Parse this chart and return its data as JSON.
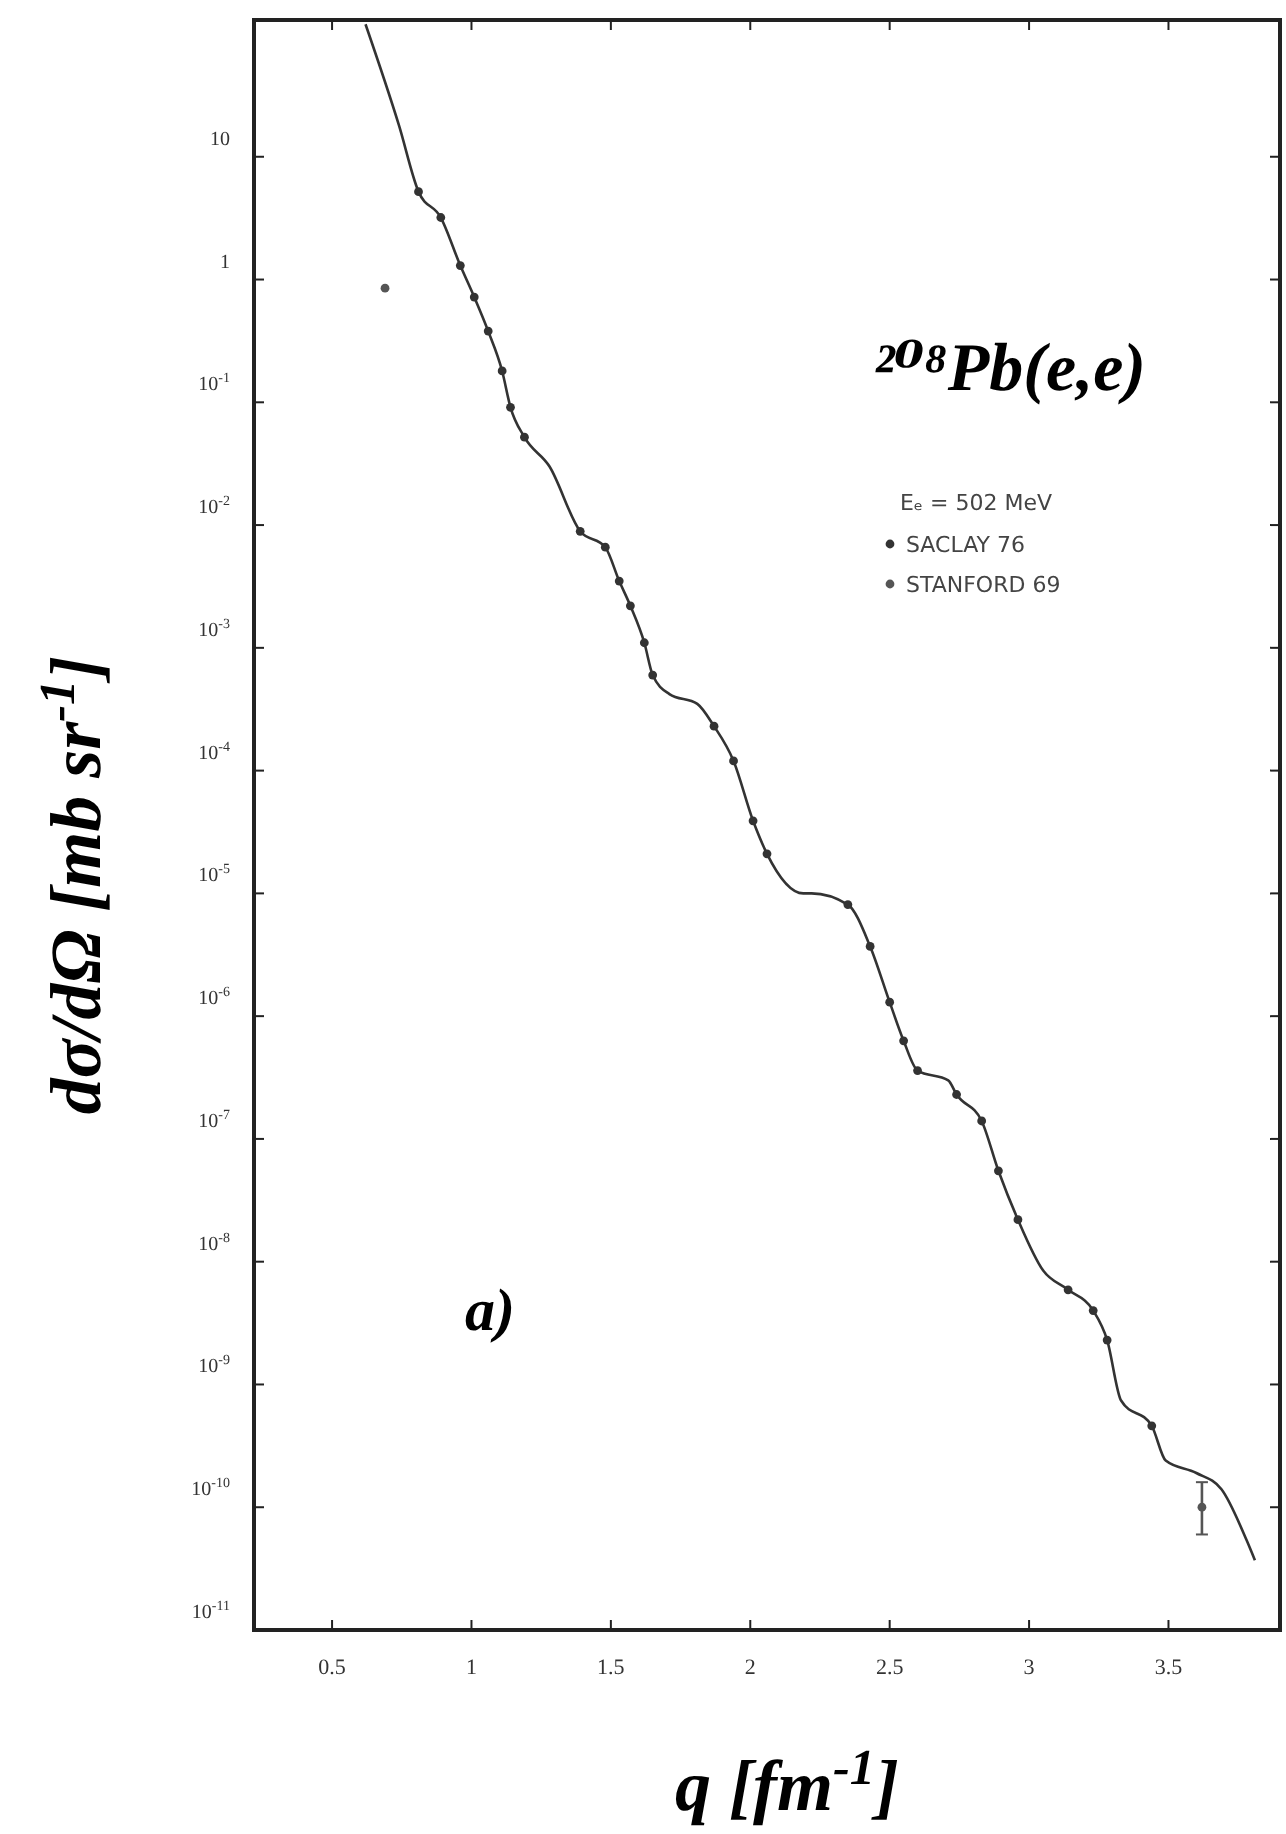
{
  "chart_data": {
    "type": "line",
    "title": "²⁰⁸Pb(e,e)",
    "subtitle": "Eₑ = 502 MeV",
    "xlabel": "q [fm$^{-1}$]",
    "ylabel": "dσ/dΩ [mb sr$^{-1}$]",
    "annotations": [
      "a)"
    ],
    "xlim": [
      0.22,
      3.9
    ],
    "xticks": [
      0.5,
      1,
      1.5,
      2,
      2.5,
      3,
      3.5
    ],
    "ylim": [
      1e-11,
      130
    ],
    "log": "y",
    "yticks": [
      {
        "value": 10,
        "label": "10"
      },
      {
        "value": 1,
        "label": "1"
      },
      {
        "value": 0.1,
        "label": "10$^{-1}$"
      },
      {
        "value": 0.01,
        "label": "10$^{-2}$"
      },
      {
        "value": 0.001,
        "label": "10$^{-3}$"
      },
      {
        "value": 0.0001,
        "label": "10$^{-4}$"
      },
      {
        "value": 1e-05,
        "label": "10$^{-5}$"
      },
      {
        "value": 1e-06,
        "label": "10$^{-6}$"
      },
      {
        "value": 1e-07,
        "label": "10$^{-7}$"
      },
      {
        "value": 1e-08,
        "label": "10$^{-8}$"
      },
      {
        "value": 1e-09,
        "label": "10$^{-9}$"
      },
      {
        "value": 1e-10,
        "label": "10$^{-10}$"
      },
      {
        "value": 1e-11,
        "label": "10$^{-11}$"
      }
    ],
    "grid": false,
    "legend": "top right",
    "series": [
      {
        "color": "#333333",
        "line_style": "solid",
        "marker": "none",
        "x": [
          0.62,
          0.74,
          0.81,
          0.89,
          0.96,
          1.01,
          1.06,
          1.11,
          1.14,
          1.19,
          1.28,
          1.39,
          1.48,
          1.53,
          1.57,
          1.62,
          1.65,
          1.71,
          1.81,
          1.87,
          1.94,
          2.01,
          2.06,
          2.19,
          2.22,
          2.35,
          2.43,
          2.5,
          2.55,
          2.6,
          2.71,
          2.74,
          2.83,
          2.89,
          2.96,
          3.05,
          3.14,
          3.23,
          3.28,
          3.33,
          3.44,
          3.49,
          3.6,
          3.69,
          3.78,
          3.81
        ],
        "values": [
          120,
          18,
          5.2,
          3.2,
          1.3,
          0.72,
          0.38,
          0.18,
          0.091,
          0.052,
          0.03,
          0.0089,
          0.0066,
          0.0035,
          0.0022,
          0.0011,
          0.0006,
          0.00042,
          0.00035,
          0.00023,
          0.00012,
          3.9e-05,
          2.1e-05,
          1e-05,
          1e-05,
          8.1e-06,
          3.7e-06,
          1.3e-06,
          6.3e-07,
          3.6e-07,
          3e-07,
          2.3e-07,
          1.4e-07,
          5.5e-08,
          2.2e-08,
          8.5e-09,
          5.9e-09,
          4e-09,
          2.3e-09,
          7.4e-10,
          4.6e-10,
          2.4e-10,
          1.9e-10,
          1.4e-10,
          5.4e-11,
          3.7e-11
        ]
      },
      {
        "type": "scatter",
        "name": "SACLAY 76",
        "color": "#333333",
        "marker": "circle",
        "x": [
          0.81,
          0.89,
          0.96,
          1.01,
          1.06,
          1.11,
          1.14,
          1.19,
          1.39,
          1.48,
          1.53,
          1.57,
          1.62,
          1.65,
          1.87,
          1.94,
          2.01,
          2.06,
          2.35,
          2.43,
          2.5,
          2.55,
          2.6,
          2.74,
          2.83,
          2.89,
          2.96,
          3.14,
          3.23,
          3.28,
          3.44
        ],
        "values": [
          5.2,
          3.2,
          1.3,
          0.72,
          0.38,
          0.18,
          0.091,
          0.052,
          0.0089,
          0.0066,
          0.0035,
          0.0022,
          0.0011,
          0.0006,
          0.00023,
          0.00012,
          3.9e-05,
          2.1e-05,
          8.1e-06,
          3.7e-06,
          1.3e-06,
          6.3e-07,
          3.6e-07,
          2.3e-07,
          1.4e-07,
          5.5e-08,
          2.2e-08,
          5.9e-09,
          4e-09,
          2.3e-09,
          4.6e-10
        ]
      },
      {
        "type": "scatter",
        "name": "STANFORD 69",
        "color": "#555555",
        "marker": "circle",
        "x": [
          0.69,
          3.62
        ],
        "values": [
          0.85,
          1e-10
        ],
        "errors": [
          null,
          [
            6e-11,
            1.6e-10
          ]
        ]
      }
    ]
  }
}
